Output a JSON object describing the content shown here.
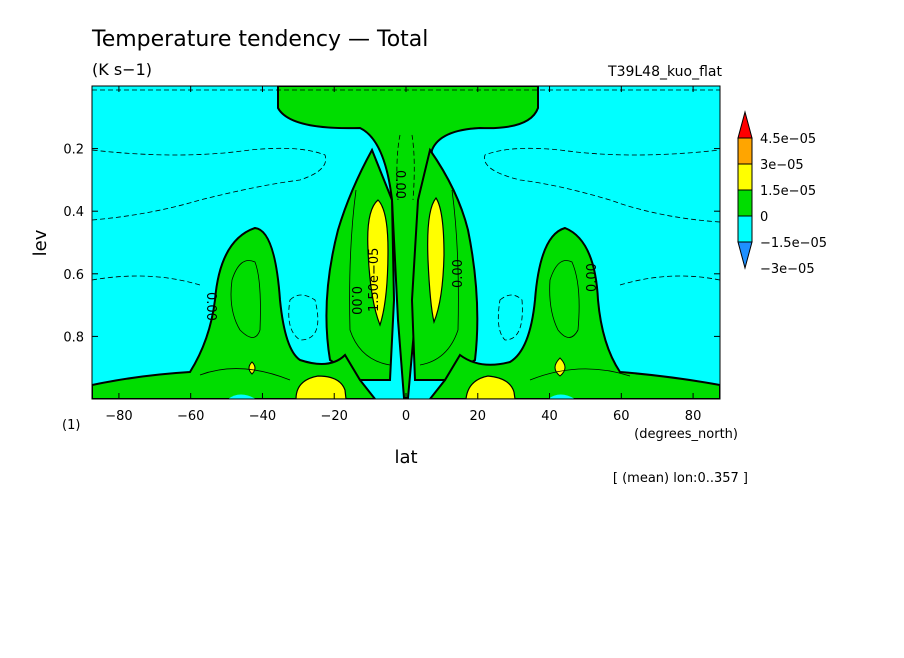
{
  "chart_data": {
    "type": "heatmap",
    "title": "Temperature tendency — Total",
    "units_label": "(K s−1)",
    "run_label": "T39L48_kuo_flat",
    "xlabel": "lat",
    "x_units": "(degrees_north)",
    "ylabel": "lev",
    "y_units": "(1)",
    "mean_note": "[ (mean) lon:0..357 ]",
    "xlim": [
      -87.5,
      87.5
    ],
    "ylim": [
      1.0,
      0.0
    ],
    "x_ticks": [
      "−80",
      "−60",
      "−40",
      "−20",
      "0",
      "20",
      "40",
      "60",
      "80"
    ],
    "x_tick_values": [
      -80,
      -60,
      -40,
      -20,
      0,
      20,
      40,
      60,
      80
    ],
    "y_ticks": [
      "0.2",
      "0.4",
      "0.6",
      "0.8"
    ],
    "y_tick_values": [
      0.2,
      0.4,
      0.6,
      0.8
    ],
    "colorbar": {
      "labels": [
        "4.5e−05",
        "3e−05",
        "1.5e−05",
        "0",
        "−1.5e−05",
        "−3e−05"
      ],
      "colors": [
        "#ff0000",
        "#ffa500",
        "#ffff00",
        "#00dd00",
        "#00ffff",
        "#1e90ff"
      ]
    },
    "contour_labels": [
      {
        "text": "0.00",
        "lat": -7,
        "lev": 0.3
      },
      {
        "text": "1.50e−05",
        "lat": -6,
        "lev": 0.6
      },
      {
        "text": "0.00",
        "lat": -18,
        "lev": 0.65
      },
      {
        "text": "0.00",
        "lat": -56,
        "lev": 0.68
      },
      {
        "text": "0.00",
        "lat": 18,
        "lev": 0.68
      },
      {
        "text": "0.00",
        "lat": 55,
        "lev": 0.68
      }
    ]
  }
}
